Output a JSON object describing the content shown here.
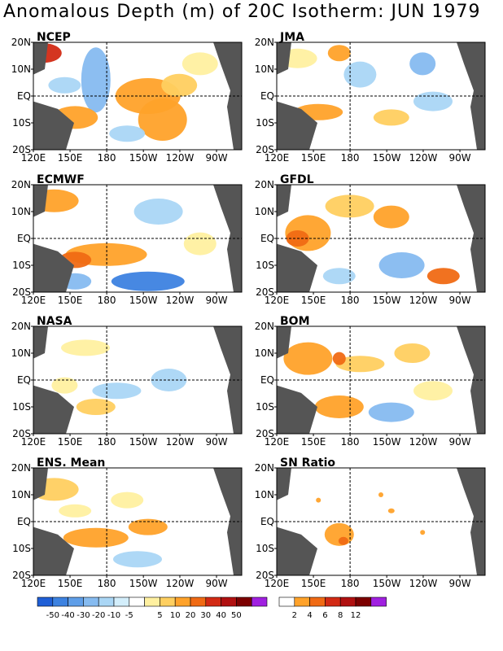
{
  "title": "Anomalous Depth (m) of 20C Isotherm: JUN 1979",
  "lat_labels": [
    "20N",
    "10N",
    "EQ",
    "10S",
    "20S"
  ],
  "lon_labels": [
    "120E",
    "150E",
    "180",
    "150W",
    "120W",
    "90W"
  ],
  "panels": [
    {
      "label": "NCEP"
    },
    {
      "label": "JMA"
    },
    {
      "label": "ECMWF"
    },
    {
      "label": "GFDL"
    },
    {
      "label": "NASA"
    },
    {
      "label": "BOM"
    },
    {
      "label": "ENS. Mean"
    },
    {
      "label": "SN Ratio"
    }
  ],
  "anomaly_colorbar": {
    "colors": [
      "#1f5fd6",
      "#3d82e0",
      "#5f9ee8",
      "#86bbf0",
      "#aad6f5",
      "#d3eefb",
      "#ffffff",
      "#fff0a0",
      "#ffcf60",
      "#ffa22a",
      "#f06a14",
      "#d22a14",
      "#b01010",
      "#7c0000",
      "#a020e0"
    ],
    "labels": [
      "-50",
      "-40",
      "-30",
      "-20",
      "-10",
      "-5",
      "5",
      "10",
      "20",
      "30",
      "40",
      "50"
    ]
  },
  "sn_colorbar": {
    "colors": [
      "#ffffff",
      "#ffa22a",
      "#f06a14",
      "#d22a14",
      "#b01010",
      "#7c0000",
      "#a020e0"
    ],
    "labels": [
      "2",
      "4",
      "6",
      "8",
      "12"
    ]
  },
  "colors": {
    "land": "#555555",
    "blue_light": "#aad6f5",
    "blue": "#86bbf0",
    "blue_dark": "#3d82e0",
    "yellow": "#fff0a0",
    "yellow_orange": "#ffcf60",
    "orange": "#ffa22a",
    "red": "#f06a14",
    "dark_red": "#d22a14"
  }
}
